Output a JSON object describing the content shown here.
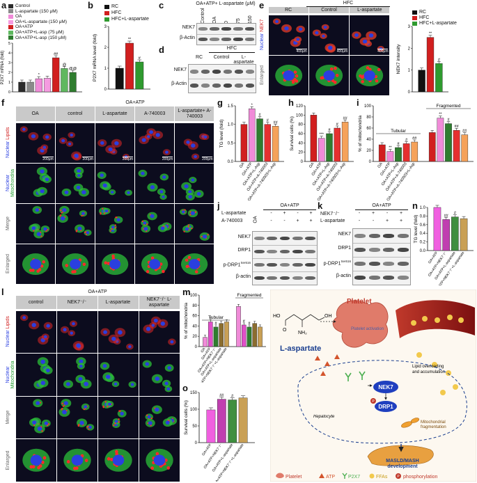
{
  "panels": {
    "a": {
      "label": "a",
      "ylabel": "P2X7 mRNA (fold)",
      "legend": [
        "Control",
        "L-aspartate (150 μM)",
        "OA",
        "OA+L-aspartate (150 μM)",
        "OA+ATP",
        "OA+ATP+L-asp (75 μM)",
        "OA+ATP+L-asp (150 μM)"
      ],
      "chart_data": {
        "type": "bar",
        "categories": [
          "Control",
          "L-aspartate (150 μM)",
          "OA",
          "OA+L-aspartate (150 μM)",
          "OA+ATP",
          "OA+ATP+L-asp (75 μM)",
          "OA+ATP+L-asp (150 μM)"
        ],
        "values": [
          1.0,
          1.0,
          1.35,
          1.4,
          3.5,
          2.4,
          2.0
        ],
        "ylim": [
          0,
          5
        ],
        "yticks": [
          "0",
          "1",
          "2",
          "3",
          "4",
          "5"
        ],
        "marks": [
          "",
          "",
          "*",
          "",
          "##",
          "@",
          "@@"
        ],
        "colors": [
          "#2b2b2b",
          "#8a8a8a",
          "#f08bd8",
          "#f59be0",
          "#d11f1f",
          "#5fb85f",
          "#2f7d2f"
        ]
      }
    },
    "b": {
      "label": "b",
      "ylabel": "P2X7 mRNA level (fold)",
      "legend": [
        "RC",
        "HFC",
        "HFC+L-aspartate"
      ],
      "chart_data": {
        "type": "bar",
        "categories": [
          "RC",
          "HFC",
          "HFC+L-aspartate"
        ],
        "values": [
          1.0,
          2.2,
          1.3
        ],
        "ylim": [
          0,
          3
        ],
        "yticks": [
          "0",
          "1",
          "2",
          "3"
        ],
        "marks": [
          "",
          "**",
          "#"
        ],
        "colors": [
          "#111111",
          "#d11f1f",
          "#2f9a2f"
        ]
      }
    },
    "c": {
      "label": "c",
      "title": "OA+ATP+ L-aspartate (μM)",
      "cols": [
        "Control",
        "OA",
        "0",
        "75",
        "150"
      ],
      "rows": [
        "NEK7",
        "β-Actin"
      ]
    },
    "d": {
      "label": "d",
      "title": "HFC",
      "cols": [
        "RC",
        "Control",
        "L-aspartate"
      ],
      "rows": [
        "NEK7",
        "β-Actin"
      ]
    },
    "e": {
      "label": "e",
      "group": "HFC",
      "cols": [
        "RC",
        "Control",
        "L-aspartate"
      ],
      "rows": [
        "Nuclear NEK7",
        "Enlarged"
      ],
      "scalebar": "400μm",
      "legend": [
        "RC",
        "HFC",
        "HFC+L-aspartate"
      ],
      "ylabel": "NEK7 intensity",
      "chart_data": {
        "type": "bar",
        "categories": [
          "RC",
          "HFC",
          "HFC+L-aspartate"
        ],
        "values": [
          1.0,
          2.5,
          1.3
        ],
        "ylim": [
          0,
          3
        ],
        "yticks": [
          "0",
          "1",
          "2",
          "3"
        ],
        "marks": [
          "",
          "**",
          "#"
        ],
        "colors": [
          "#111111",
          "#d11f1f",
          "#2f9a2f"
        ]
      }
    },
    "f": {
      "label": "f",
      "group": "OA+ATP",
      "cols": [
        "OA",
        "control",
        "L-aspartate",
        "A-740003",
        "L-aspartate+ A-740003"
      ],
      "rows": [
        "Nuclear Lipids",
        "Nuclear Mitochondria",
        "Merge",
        "Enlarged"
      ],
      "scalebar": "200μm"
    },
    "g": {
      "label": "g",
      "ylabel": "TG level (fold)",
      "chart_data": {
        "type": "bar",
        "categories": [
          "OA",
          "OA+ATP",
          "OA+ATP+L-Asp",
          "OA+ATP+A-740003",
          "OA+ATP+A-740003+L-Asp"
        ],
        "values": [
          1.0,
          1.42,
          1.15,
          1.0,
          0.95
        ],
        "ylim": [
          0,
          1.5
        ],
        "yticks": [
          "0.0",
          "0.5",
          "1.0",
          "1.5"
        ],
        "marks": [
          "",
          "*",
          "#",
          "#",
          "##"
        ],
        "colors": [
          "#d11f1f",
          "#f08bd8",
          "#2f7d2f",
          "#e53030",
          "#f5a25a"
        ]
      }
    },
    "h": {
      "label": "h",
      "ylabel": "Survival cells (%)",
      "chart_data": {
        "type": "bar",
        "categories": [
          "OA",
          "OA+ATP",
          "OA+ATP+L-Asp",
          "OA+ATP+A-740003",
          "OA+ATP+A-740003+L-Asp"
        ],
        "values": [
          100,
          50,
          60,
          72,
          85
        ],
        "ylim": [
          0,
          120
        ],
        "yticks": [
          "0",
          "20",
          "40",
          "60",
          "80",
          "100",
          "120"
        ],
        "marks": [
          "",
          "***",
          "#",
          "#",
          "##"
        ],
        "colors": [
          "#d11f1f",
          "#f08bd8",
          "#2f7d2f",
          "#e53030",
          "#f5a25a"
        ]
      }
    },
    "i": {
      "label": "i",
      "ylabel": "% of mitochondria",
      "groups": [
        "Tubular",
        "Fragmented"
      ],
      "chart_data": {
        "type": "bar",
        "categories": [
          "OA",
          "OA+ATP",
          "OA+ATP+L-Asp",
          "OA+ATP+A-740003",
          "OA+ATP+A-740003+L-Asp"
        ],
        "series": [
          {
            "name": "Tubular",
            "values": [
              30,
              18,
              25,
              32,
              35
            ]
          },
          {
            "name": "Fragmented",
            "values": [
              52,
              78,
              68,
              56,
              48
            ]
          }
        ],
        "ylim": [
          0,
          100
        ],
        "yticks": [
          "0",
          "20",
          "40",
          "60",
          "80",
          "100"
        ],
        "marks": [
          [
            "",
            "**",
            "#",
            "#",
            "##"
          ],
          [
            "",
            "**",
            "#",
            "##",
            "##"
          ]
        ],
        "colors": [
          "#d11f1f",
          "#f08bd8",
          "#2f7d2f",
          "#e53030",
          "#f5a25a"
        ]
      }
    },
    "j": {
      "label": "j",
      "title": "OA+ATP",
      "conds": [
        {
          "name": "L-aspartate",
          "vals": [
            "-",
            "+",
            "-",
            "+"
          ]
        },
        {
          "name": "A-740003",
          "vals": [
            "-",
            "-",
            "+",
            "+"
          ]
        }
      ],
      "firstcol": "OA",
      "rows": [
        "NEK7",
        "DRP1",
        "p-DRP1",
        "β-actin"
      ],
      "sup": "Ser616"
    },
    "k": {
      "label": "k",
      "title": "OA+ATP",
      "conds": [
        {
          "name": "NEK7⁻/⁻",
          "vals": [
            "-",
            "+",
            "-",
            "+"
          ]
        },
        {
          "name": "L-aspartate",
          "vals": [
            "-",
            "-",
            "+",
            "+"
          ]
        }
      ],
      "rows": [
        "NEK7",
        "DRP1",
        "p-DRP1",
        "β-actin"
      ],
      "sup": "Ser616"
    },
    "l": {
      "label": "l",
      "group": "OA+ATP",
      "cols": [
        "control",
        "NEK7⁻/⁻",
        "L-aspartate",
        "NEK7⁻/⁻ L-aspartate"
      ],
      "rows": [
        "Nuclear Lipids",
        "Nuclear Mitochondria",
        "Merge",
        "Enlarged"
      ]
    },
    "m": {
      "label": "m",
      "ylabel": "% of mitochondria",
      "groups": [
        "Tubular",
        "Fragmented"
      ],
      "chart_data": {
        "type": "bar",
        "categories": [
          "OA",
          "OA+ATP",
          "OA+ATP+NEK7⁻/⁻",
          "OA+ATP+L-aspartate",
          "OA+ATP+NEK7⁻/⁻+L-aspartate"
        ],
        "series": [
          {
            "name": "Tubular",
            "values": [
              18,
              48,
              38,
              45,
              48
            ]
          },
          {
            "name": "Fragmented",
            "values": [
              78,
              42,
              38,
              45,
              38
            ]
          }
        ],
        "ylim": [
          0,
          100
        ],
        "yticks": [
          "0",
          "20",
          "40",
          "60",
          "80",
          "100"
        ],
        "marks": [
          [
            "",
            "#",
            "#",
            "",
            " "
          ],
          [
            "",
            "#",
            "#",
            "",
            ""
          ]
        ],
        "colors": [
          "#f08bd8",
          "#e04fc8",
          "#2f7d2f",
          "#8b6d2f",
          "#c9a055"
        ]
      }
    },
    "n": {
      "label": "n",
      "ylabel": "TG level (fold)",
      "chart_data": {
        "type": "bar",
        "categories": [
          "OA+ATP",
          "OA+ATP+NEK7⁻/⁻",
          "OA+ATP+L-aspartate",
          "OA+ATP+NEK7⁻/⁻+L-aspartate"
        ],
        "values": [
          1.0,
          0.72,
          0.78,
          0.74
        ],
        "ylim": [
          0,
          1.0
        ],
        "yticks": [
          "0.0",
          "0.2",
          "0.4",
          "0.6",
          "0.8",
          "1.0"
        ],
        "marks": [
          "",
          "##",
          "#",
          ""
        ],
        "colors": [
          "#f060e0",
          "#c03fb0",
          "#3f8f3f",
          "#c9a055"
        ]
      }
    },
    "o": {
      "label": "o",
      "ylabel": "Survival cells (%)",
      "chart_data": {
        "type": "bar",
        "categories": [
          "OA+ATP",
          "OA+ATP+NEK7⁻/⁻",
          "OA+ATP+L-aspartate",
          "OA+ATP+NEK7⁻/⁻+L-aspartate"
        ],
        "values": [
          98,
          130,
          128,
          134
        ],
        "ylim": [
          0,
          150
        ],
        "yticks": [
          "0",
          "50",
          "100",
          "150"
        ],
        "marks": [
          "",
          "##",
          "#",
          ""
        ],
        "colors": [
          "#f060e0",
          "#c03fb0",
          "#3f8f3f",
          "#c9a055"
        ]
      }
    },
    "p": {
      "label": "p",
      "compound": "L-aspartate",
      "platelet": "Platelet",
      "p2x7_label": "P2X7",
      "activation": "Platelet activation",
      "lipid": "Lipid overloading and accumulation",
      "nek7": "NEK7",
      "drp1": "DRP1",
      "frag": "Mitochondrial fragmentation",
      "hepatocyte": "Hepatocyte",
      "outcome": "MASLD/MASH development",
      "legend": [
        "Platelet",
        "ATP",
        "P2X7",
        "FFAs",
        "phosphorylation"
      ]
    }
  }
}
